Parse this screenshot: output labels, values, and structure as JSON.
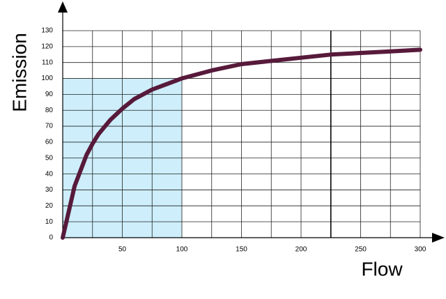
{
  "chart_data": {
    "type": "line",
    "x_label": "Flow",
    "y_label": "Emission",
    "x": [
      0,
      10,
      20,
      25,
      30,
      40,
      50,
      60,
      75,
      100,
      125,
      150,
      175,
      200,
      225,
      250,
      275,
      300
    ],
    "values": [
      0,
      32.5,
      52,
      59,
      65,
      74,
      81,
      87,
      93,
      100,
      105,
      109,
      111,
      113,
      115,
      116,
      117,
      118
    ],
    "color": "#571a3b",
    "xlim": [
      0,
      300
    ],
    "ylim": [
      0,
      130
    ],
    "xticks": [
      50,
      100,
      150,
      200,
      250,
      300
    ],
    "xgrid": [
      25,
      50,
      75,
      100,
      125,
      150,
      175,
      200,
      225,
      250,
      275,
      300
    ],
    "yticks": [
      0,
      10,
      20,
      30,
      40,
      50,
      60,
      70,
      80,
      90,
      100,
      110,
      120,
      130
    ],
    "highlight_x": 225,
    "shaded_region": {
      "x": [
        0,
        100
      ],
      "y": [
        0,
        100
      ],
      "color": "#cdeefa"
    },
    "grid": true
  }
}
